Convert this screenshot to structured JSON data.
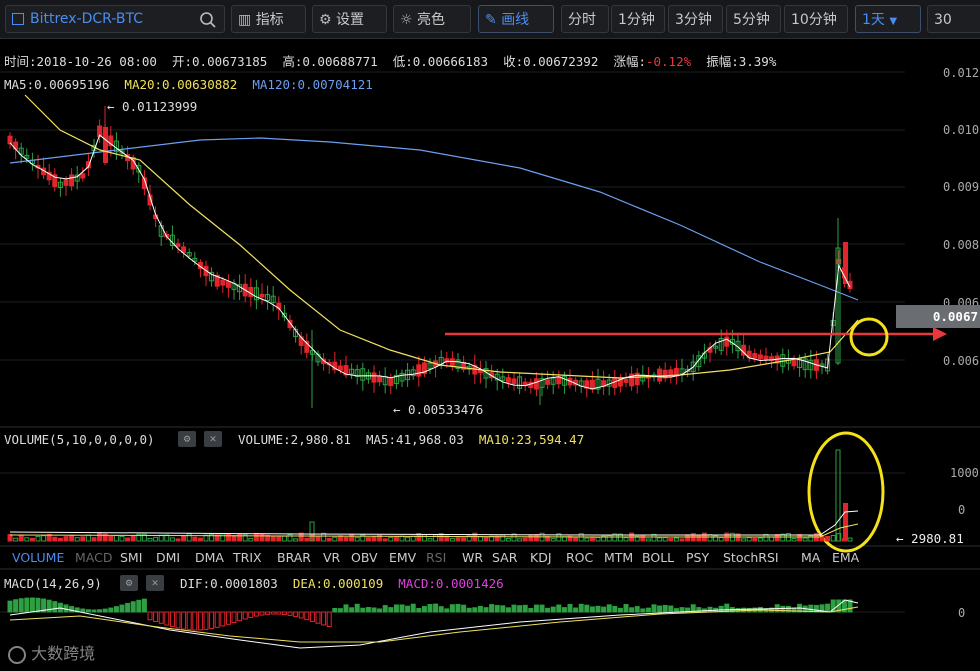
{
  "toolbar": {
    "symbol": "Bittrex-DCR-BTC",
    "indicators_label": "指标",
    "settings_label": "设置",
    "theme_label": "亮色",
    "draw_label": "画线",
    "intervals": [
      "分时",
      "1分钟",
      "3分钟",
      "5分钟",
      "10分钟"
    ],
    "selected_interval": "1天",
    "cut_label": "30"
  },
  "ohlc": {
    "time": "时间:2018-10-26 08:00",
    "open": "开:0.00673185",
    "high": "高:0.00688771",
    "low": "低:0.00666183",
    "close": "收:0.00672392",
    "change_label": "涨幅:",
    "change_value": "-0.12%",
    "amp": "振幅:3.39%"
  },
  "ma": {
    "ma5": "MA5:0.00695196",
    "ma20": "MA20:0.00630882",
    "ma120": "MA120:0.00704121"
  },
  "price_axis": [
    "0.012",
    "0.010",
    "0.009",
    "0.008",
    "0.006",
    "0.006"
  ],
  "price_tag": "0.0067",
  "annotations": {
    "high_marker": "← 0.01123999",
    "low_marker": "← 0.00533476"
  },
  "volume": {
    "title": "VOLUME(5,10,0,0,0,0)",
    "value": "VOLUME:2,980.81",
    "ma5": "MA5:41,968.03",
    "ma10": "MA10:23,594.47",
    "axis_top": "1000",
    "axis_zero": "0",
    "tag": "← 2980.81"
  },
  "indicator_tabs": [
    "VOLUME",
    "MACD",
    "SMI",
    "DMI",
    "DMA",
    "TRIX",
    "BRAR",
    "VR",
    "OBV",
    "EMV",
    "RSI",
    "WR",
    "SAR",
    "KDJ",
    "ROC",
    "MTM",
    "BOLL",
    "PSY",
    "StochRSI",
    "MA",
    "EMA"
  ],
  "macd": {
    "title": "MACD(14,26,9)",
    "dif": "DIF:0.0001803",
    "dea": "DEA:0.000109",
    "macd": "MACD:0.0001426",
    "axis_zero": "0"
  },
  "watermark": "大数跨境",
  "colors": {
    "up": "#2ea043",
    "down": "#e0262b",
    "ma5": "#ffffff",
    "ma20": "#f0e060",
    "ma120": "#6b9ff0",
    "accent": "#4a8df0",
    "highlight": "#f5e11a",
    "arrow": "#e8383d"
  }
}
